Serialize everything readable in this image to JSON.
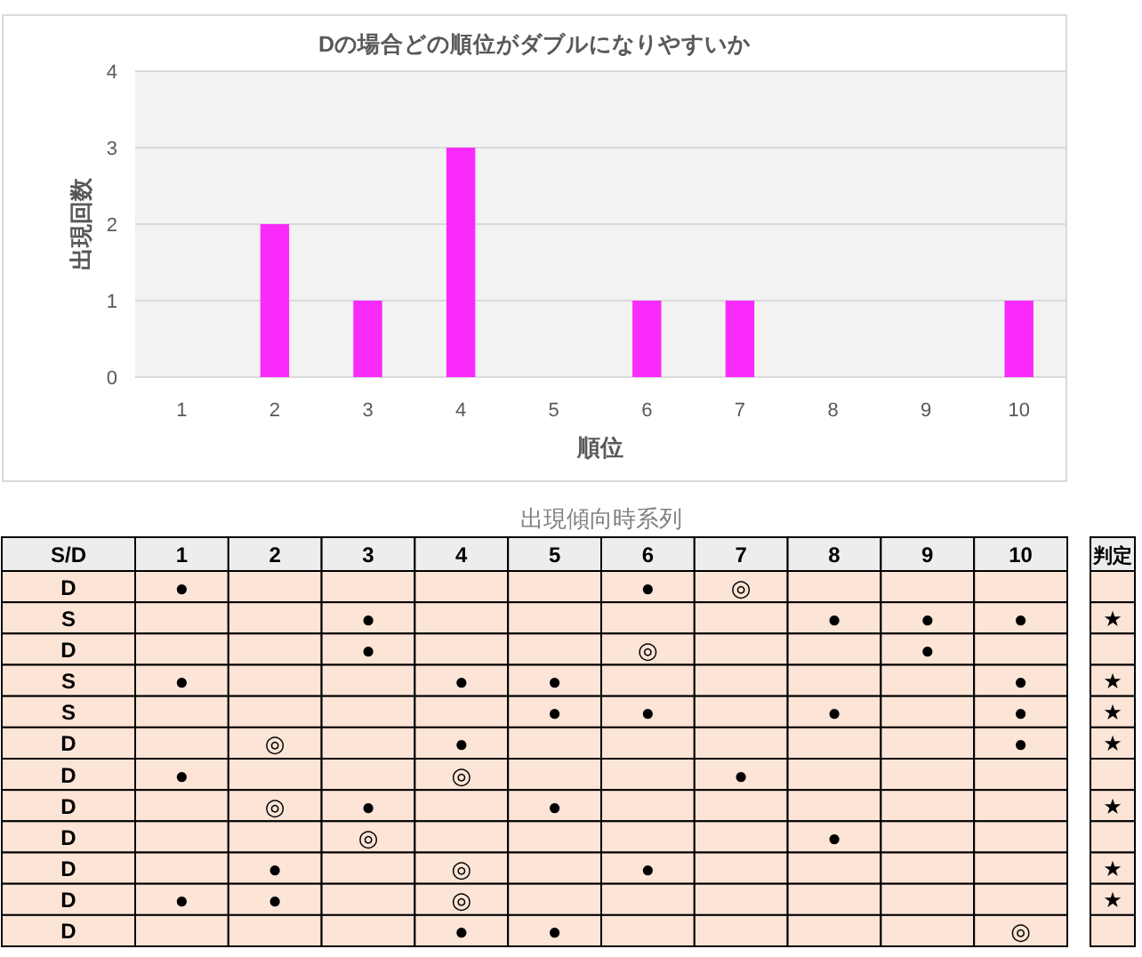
{
  "chart_data": [
    {
      "type": "bar",
      "title": "Dの場合どの順位がダブルになりやすいか",
      "xlabel": "順位",
      "ylabel": "出現回数",
      "categories": [
        "1",
        "2",
        "3",
        "4",
        "5",
        "6",
        "7",
        "8",
        "9",
        "10"
      ],
      "values": [
        0,
        2,
        1,
        3,
        0,
        1,
        1,
        0,
        0,
        1
      ],
      "color": "#fa2bfa",
      "ylim": [
        0,
        4
      ],
      "yticks": [
        0,
        1,
        2,
        3,
        4
      ],
      "grid": "y"
    },
    {
      "type": "heatmap",
      "title": "出現傾向時系列",
      "ylabel": "S/D",
      "y2label": "判定",
      "categories": [
        "1",
        "2",
        "3",
        "4",
        "5",
        "6",
        "7",
        "8",
        "9",
        "10"
      ],
      "y_categories": [
        "D",
        "S",
        "D",
        "S",
        "S",
        "D",
        "D",
        "D",
        "D",
        "D",
        "D",
        "D"
      ],
      "y2_categories": [
        null,
        "★",
        null,
        "★",
        "★",
        "★",
        null,
        "★",
        null,
        "★",
        "★",
        null
      ],
      "cells": [
        [
          null,
          null,
          null,
          null,
          null,
          null,
          null,
          null,
          null,
          null
        ],
        [
          null,
          null,
          null,
          null,
          null,
          null,
          null,
          null,
          null,
          null
        ],
        [
          null,
          null,
          null,
          null,
          null,
          null,
          null,
          null,
          null,
          null
        ],
        [
          null,
          null,
          null,
          null,
          null,
          null,
          null,
          null,
          null,
          null
        ],
        [
          null,
          null,
          null,
          null,
          null,
          null,
          null,
          null,
          null,
          null
        ],
        [
          null,
          null,
          null,
          null,
          null,
          null,
          null,
          null,
          null,
          null
        ],
        [
          null,
          null,
          null,
          null,
          null,
          null,
          null,
          null,
          null,
          null
        ],
        [
          null,
          null,
          null,
          null,
          null,
          null,
          null,
          null,
          null,
          null
        ],
        [
          null,
          null,
          null,
          null,
          null,
          null,
          null,
          null,
          null,
          null
        ],
        [
          null,
          null,
          null,
          null,
          null,
          null,
          null,
          null,
          null,
          null
        ],
        [
          null,
          null,
          null,
          null,
          null,
          null,
          null,
          null,
          null,
          null
        ],
        [
          null,
          null,
          null,
          null,
          null,
          null,
          null,
          null,
          null,
          null
        ]
      ],
      "cell_labels": [
        [
          "●",
          null,
          null,
          null,
          null,
          "●",
          "◎",
          null,
          null,
          null
        ],
        [
          null,
          null,
          "●",
          null,
          null,
          null,
          null,
          "●",
          "●",
          "●"
        ],
        [
          null,
          null,
          "●",
          null,
          null,
          "◎",
          null,
          null,
          "●",
          null
        ],
        [
          "●",
          null,
          null,
          "●",
          "●",
          null,
          null,
          null,
          null,
          "●"
        ],
        [
          null,
          null,
          null,
          null,
          "●",
          "●",
          null,
          "●",
          null,
          "●"
        ],
        [
          null,
          "◎",
          null,
          "●",
          null,
          null,
          null,
          null,
          null,
          "●"
        ],
        [
          "●",
          null,
          null,
          "◎",
          null,
          null,
          "●",
          null,
          null,
          null
        ],
        [
          null,
          "◎",
          "●",
          null,
          "●",
          null,
          null,
          null,
          null,
          null
        ],
        [
          null,
          null,
          "◎",
          null,
          null,
          null,
          null,
          "●",
          null,
          null
        ],
        [
          null,
          "●",
          null,
          "◎",
          null,
          "●",
          null,
          null,
          null,
          null
        ],
        [
          "●",
          "●",
          null,
          "◎",
          null,
          null,
          null,
          null,
          null,
          null
        ],
        [
          null,
          null,
          null,
          "●",
          "●",
          null,
          null,
          null,
          null,
          "◎"
        ]
      ]
    }
  ]
}
